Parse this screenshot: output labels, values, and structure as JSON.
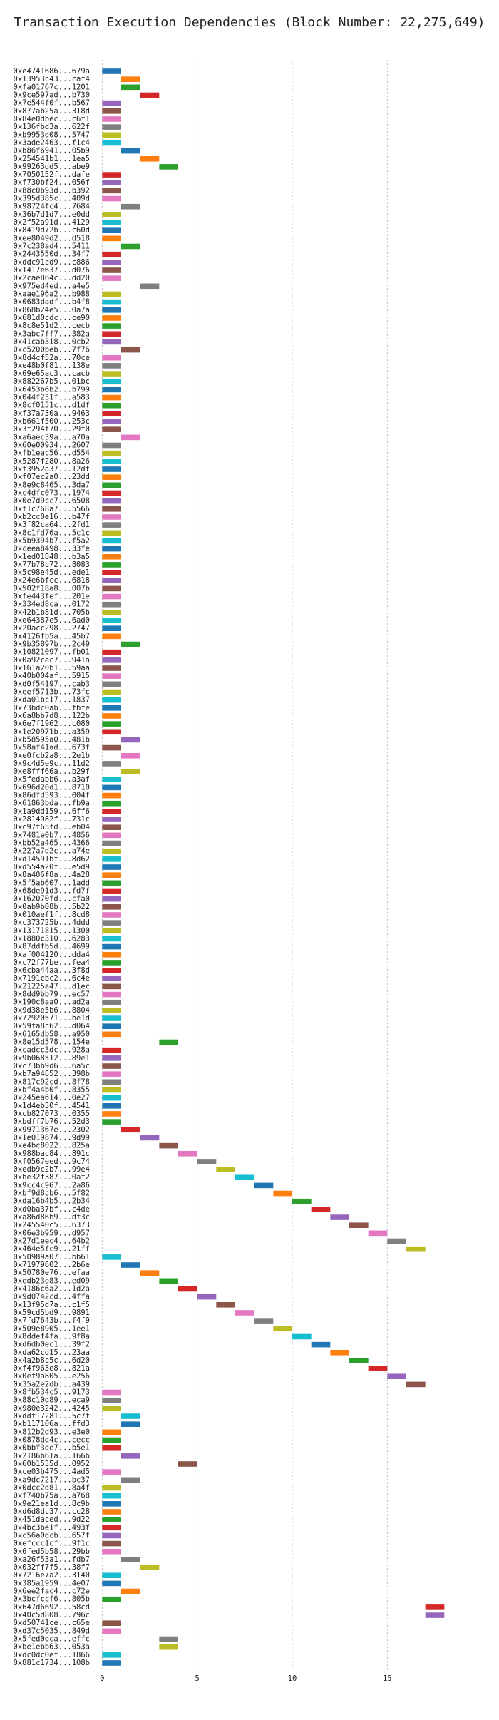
{
  "chart_data": {
    "type": "gantt",
    "title": "Transaction Execution Dependencies (Block Number: 22,275,649)",
    "categories": [
      "0xe4741686...679a",
      "0x13953c43...caf4",
      "0xfa01767c...1201",
      "0x9ce597ad...b730",
      "0x7e544f0f...b567",
      "0x877ab25a...318d",
      "0x84e0dbec...c6f1",
      "0x136fbd3a...622f",
      "0xb9953d08...5747",
      "0x3ade2463...f1c4",
      "0xb86f6941...05b9",
      "0x254541b1...1ea5",
      "0x99263dd5...abe9",
      "0x7050152f...dafe",
      "0xf730bf24...056f",
      "0x88c0b93d...b392",
      "0x395d385c...409d",
      "0x98724fc4...7684",
      "0x36b7d1d7...e0dd",
      "0x2f52a91d...4129",
      "0x8419d72b...c60d",
      "0xee8049d2...d518",
      "0x7c238ad4...5411",
      "0x2443550d...34f7",
      "0xddc91cd9...c886",
      "0x1417e637...d076",
      "0x2cae864c...dd20",
      "0x975ed4ed...a4e5",
      "0xaae196a2...b988",
      "0x0683dadf...b4f8",
      "0x868b24e5...0a7a",
      "0x681d0cdc...ce90",
      "0x8c8e51d2...cecb",
      "0x3abc7ff7...382a",
      "0x41cab318...0cb2",
      "0xc5200beb...7f76",
      "0x8d4cf52a...70ce",
      "0xe48b0f81...138e",
      "0x69e65ac3...cacb",
      "0x882267b5...01bc",
      "0x6453b6b2...b799",
      "0x044f231f...a583",
      "0x8cf0151c...d1df",
      "0xf37a730a...9463",
      "0xb661f500...253c",
      "0x3f294f70...29f0",
      "0xa6aec39a...a70a",
      "0x60e00934...2607",
      "0xfb1eac56...d554",
      "0x5287f280...8a26",
      "0xf3952a37...12df",
      "0xf07ec2a0...23dd",
      "0x8e9c8465...3da7",
      "0xc4dfc073...1974",
      "0x0e7d9cc7...6508",
      "0xf1c768a7...5566",
      "0xb2cc0e16...b47f",
      "0x3f82ca64...2fd1",
      "0x8c1fd76a...5c1c",
      "0x5b9394b7...f5a2",
      "0xceea8498...33fe",
      "0x1ed01848...b3a5",
      "0x77b78c72...8083",
      "0x5c98e45d...ede1",
      "0x24e6bfcc...6818",
      "0x502f18a8...007b",
      "0xfe443fef...201e",
      "0x334ed8ca...0172",
      "0x42b1b81d...705b",
      "0xe64387e5...6ad0",
      "0x20acc298...2747",
      "0x4126fb5a...45b7",
      "0x9b35897b...2c49",
      "0x10821097...fb01",
      "0x0a92cec7...941a",
      "0x161a20b1...59aa",
      "0x40b004af...5915",
      "0xd0f54197...cab3",
      "0xeef5713b...73fc",
      "0xda01bc17...1837",
      "0x73bdc0ab...fbfe",
      "0x6a8bb7d8...122b",
      "0x6e7f1962...c080",
      "0x1e20971b...a359",
      "0xb58595a0...481b",
      "0x58af41ad...673f",
      "0xe0fcb2a8...2e1b",
      "0x9c4d5e9c...11d2",
      "0xe8fff66a...b29f",
      "0x5fedabb6...a3af",
      "0x696d20d1...8710",
      "0x86dfd593...004f",
      "0x61863bda...fb9a",
      "0x1a9dd159...6ff6",
      "0x2814982f...731c",
      "0xc97f65fd...eb04",
      "0x7481e0b7...4856",
      "0xbb52a465...4366",
      "0x227a7d2c...a74e",
      "0xd14591bf...8d62",
      "0xd554a20f...e5d9",
      "0x8a406f8a...4a28",
      "0x5f5ab607...1add",
      "0x68de91d3...fd7f",
      "0x162070fd...cfa0",
      "0x0ab9b08b...5b22",
      "0x010aef1f...8cd8",
      "0xc373725b...4ddd",
      "0x13171815...1300",
      "0x1880c310...6283",
      "0x87ddfb5d...4699",
      "0xaf004120...dda4",
      "0xc72f77be...fea4",
      "0x6cba44aa...3f8d",
      "0x7191cbc2...6c4e",
      "0x21225a47...d1ec",
      "0x8dd9bb79...ec57",
      "0x190c8aa0...ad2a",
      "0x9d38e5b6...8804",
      "0x72920571...be1d",
      "0x59fa8c62...d064",
      "0x6165db58...a950",
      "0x8e15d578...154e",
      "0xcadcc3dc...928a",
      "0x9b068512...89e1",
      "0xc73bb9d6...6a5c",
      "0xb7a94852...398b",
      "0x817c92cd...8f78",
      "0xbf4a4b0f...8355",
      "0x245ea614...0e27",
      "0x1d4eb30f...4541",
      "0xcb827073...0355",
      "0xbdff7b76...52d3",
      "0x9971367e...2302",
      "0x1e019874...9d99",
      "0xe4bc8022...825a",
      "0x988bac84...891c",
      "0xf0567eed...9c74",
      "0xedb9c2b7...99e4",
      "0xbe32f387...0af2",
      "0x9cc4c967...2a86",
      "0xbf9d8cb6...5f82",
      "0xda16b4b5...2b34",
      "0xd0ba37bf...c4de",
      "0xa86d86b9...df3c",
      "0x245540c5...6373",
      "0x06e3b959...d957",
      "0x27d1eec4...64b2",
      "0x464e5fc9...21ff",
      "0x50989a07...bb61",
      "0x71979602...2b6e",
      "0x50780e76...efaa",
      "0xedb23e83...ed09",
      "0x4186c6a2...1d2a",
      "0x9d0742cd...4ffa",
      "0x13f95d7a...c1f5",
      "0x59cd5bd9...9891",
      "0x7fd7643b...f4f9",
      "0x509e8905...1ee1",
      "0x8ddef4fa...9f8a",
      "0xd6db0ec1...39f2",
      "0xda62cd15...23aa",
      "0x4a2b8c5c...6d20",
      "0xf4f963e8...821a",
      "0x0ef9a805...e256",
      "0x35a2e2db...a439",
      "0x8fb534c5...9173",
      "0x88c10d89...eca9",
      "0x980e3242...4245",
      "0xddf17281...5c7f",
      "0xb117106a...ffd3",
      "0x812b2d93...e3e0",
      "0x0878dd4c...cecc",
      "0x0bbf3de7...b5e1",
      "0x2186b61a...166b",
      "0x60b1535d...0952",
      "0xce03b475...4ad5",
      "0xa9dc7217...bc37",
      "0x0dcc2d81...8a4f",
      "0xf740b75a...a768",
      "0x9e21ea1d...8c9b",
      "0xd6d8dc37...cc28",
      "0x451daced...9d22",
      "0x4bc3be1f...493f",
      "0xc56a0dcb...657f",
      "0xefccc1cf...9f1c",
      "0x6fed5b58...29bb",
      "0xa26f53a1...fdb7",
      "0x032ff7f5...38f7",
      "0x7216e7a2...3140",
      "0x385a1959...4e07",
      "0x6ee2fac4...c72e",
      "0x3bcfccf6...805b",
      "0x647d6692...58cd",
      "0x40c5d808...796c",
      "0xd50741ce...c65e",
      "0xd37c5035...849d",
      "0x5fed0dca...effc",
      "0xbe1ebb63...053a",
      "0xdc0dc0ef...1866",
      "0x881c1734...108b"
    ],
    "values": [
      0,
      1,
      1,
      2,
      0,
      0,
      0,
      0,
      0,
      0,
      1,
      2,
      3,
      0,
      0,
      0,
      0,
      1,
      0,
      0,
      0,
      0,
      1,
      0,
      0,
      0,
      0,
      2,
      0,
      0,
      0,
      0,
      0,
      0,
      0,
      1,
      0,
      0,
      0,
      0,
      0,
      0,
      0,
      0,
      0,
      0,
      1,
      0,
      0,
      0,
      0,
      0,
      0,
      0,
      0,
      0,
      0,
      0,
      0,
      0,
      0,
      0,
      0,
      0,
      0,
      0,
      0,
      0,
      0,
      0,
      0,
      0,
      1,
      0,
      0,
      0,
      0,
      0,
      0,
      0,
      0,
      0,
      0,
      0,
      1,
      0,
      1,
      0,
      1,
      0,
      0,
      0,
      0,
      0,
      0,
      0,
      0,
      0,
      0,
      0,
      0,
      0,
      0,
      0,
      0,
      0,
      0,
      0,
      0,
      0,
      0,
      0,
      0,
      0,
      0,
      0,
      0,
      0,
      0,
      0,
      0,
      0,
      3,
      0,
      0,
      0,
      0,
      0,
      0,
      0,
      0,
      0,
      0,
      1,
      2,
      3,
      4,
      5,
      6,
      7,
      8,
      9,
      10,
      11,
      12,
      13,
      14,
      15,
      16,
      0,
      1,
      2,
      3,
      4,
      5,
      6,
      7,
      8,
      9,
      10,
      11,
      12,
      13,
      14,
      15,
      16,
      0,
      0,
      0,
      1,
      1,
      0,
      0,
      0,
      1,
      4,
      0,
      1,
      0,
      0,
      0,
      0,
      0,
      0,
      0,
      0,
      0,
      1,
      2,
      0,
      0,
      1,
      0,
      17,
      17,
      0,
      0,
      3,
      3,
      0,
      0
    ],
    "duration": 1,
    "colors": [
      "#1f77b4",
      "#ff7f0e",
      "#2ca02c",
      "#d62728",
      "#9467bd",
      "#8c564b",
      "#e377c2",
      "#7f7f7f",
      "#bcbd22",
      "#17becf"
    ],
    "xlim": [
      -0.5,
      19
    ],
    "xticks": [
      0,
      5,
      10,
      15
    ],
    "grid": true
  }
}
